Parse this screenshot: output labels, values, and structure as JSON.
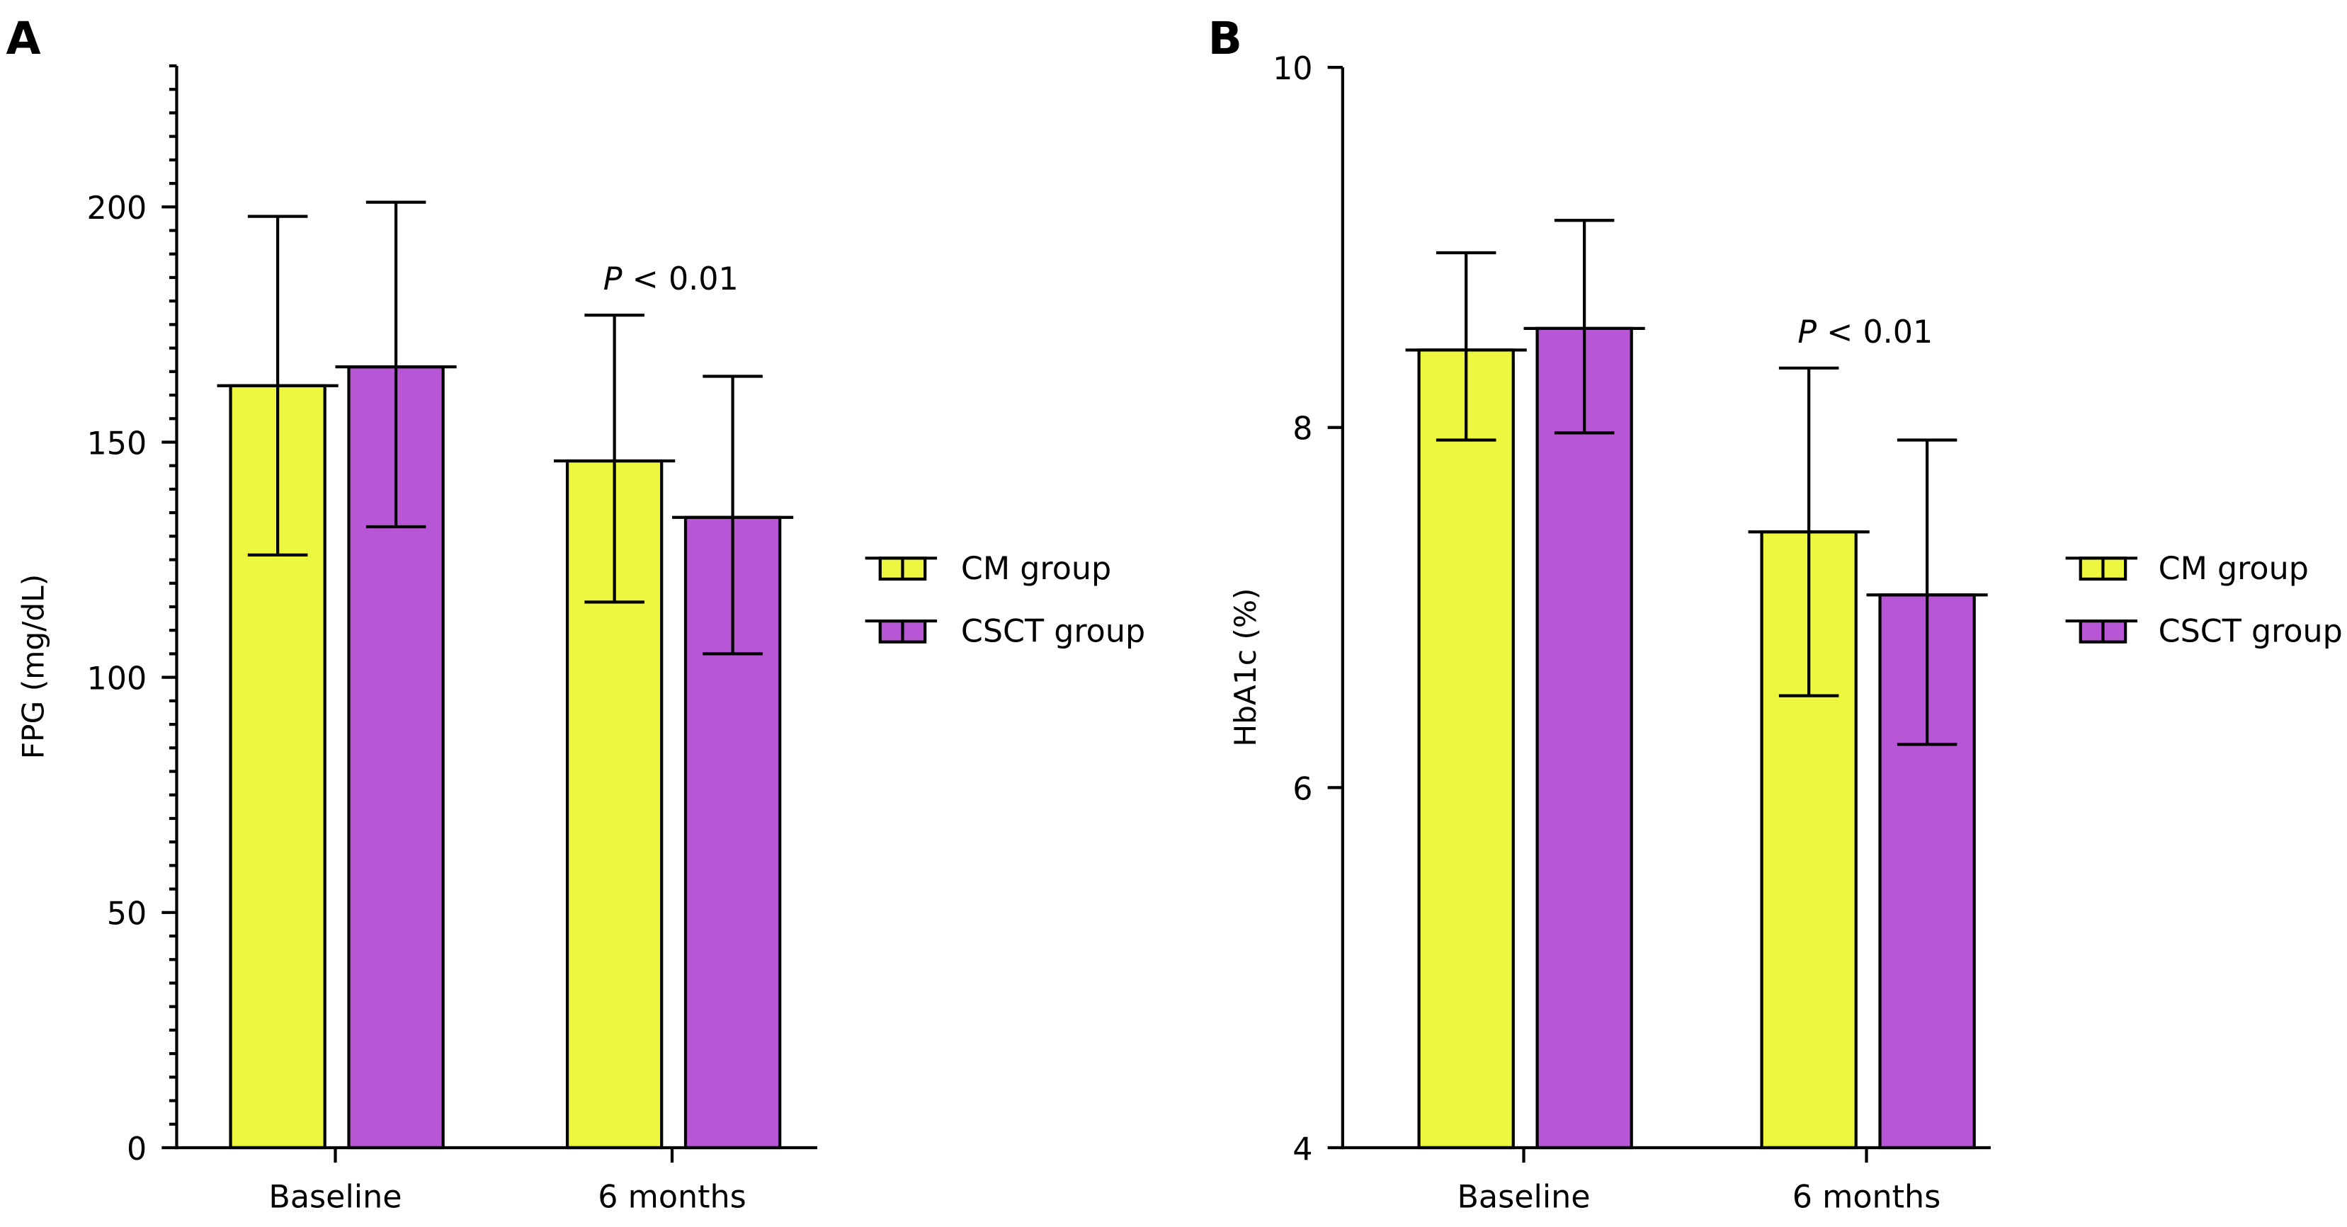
{
  "colors": {
    "cm": "#EDF73F",
    "csct": "#B857D6",
    "axis": "#000000"
  },
  "chart_data": [
    {
      "type": "bar",
      "panel_label": "A",
      "ylabel": "FPG (mg/dL)",
      "ylim": [
        0,
        230
      ],
      "yticks": [
        0,
        50,
        100,
        150,
        200
      ],
      "minor_tick_step": 5,
      "categories": [
        "Baseline",
        "6 months"
      ],
      "series": [
        {
          "name": "CM group",
          "values": [
            162,
            146
          ],
          "err_upper": [
            198,
            177
          ],
          "err_lower": [
            126,
            116
          ]
        },
        {
          "name": "CSCT group",
          "values": [
            166,
            134
          ],
          "err_upper": [
            201,
            164
          ],
          "err_lower": [
            132,
            105
          ]
        }
      ],
      "annotation": {
        "p": "P",
        "text": " < 0.01",
        "category": 1
      },
      "legend": "right",
      "grid": false
    },
    {
      "type": "bar",
      "panel_label": "B",
      "ylabel": "HbA1c (%)",
      "ylim": [
        4,
        10
      ],
      "yticks": [
        4,
        6,
        8,
        10
      ],
      "minor_tick_step": null,
      "categories": [
        "Baseline",
        "6 months"
      ],
      "series": [
        {
          "name": "CM group",
          "values": [
            8.43,
            7.42
          ],
          "err_upper": [
            8.97,
            8.33
          ],
          "err_lower": [
            7.93,
            6.51
          ]
        },
        {
          "name": "CSCT group",
          "values": [
            8.55,
            7.07
          ],
          "err_upper": [
            9.15,
            7.93
          ],
          "err_lower": [
            7.97,
            6.24
          ]
        }
      ],
      "annotation": {
        "p": "P",
        "text": " < 0.01",
        "category": 1
      },
      "legend": "right",
      "grid": false
    }
  ]
}
